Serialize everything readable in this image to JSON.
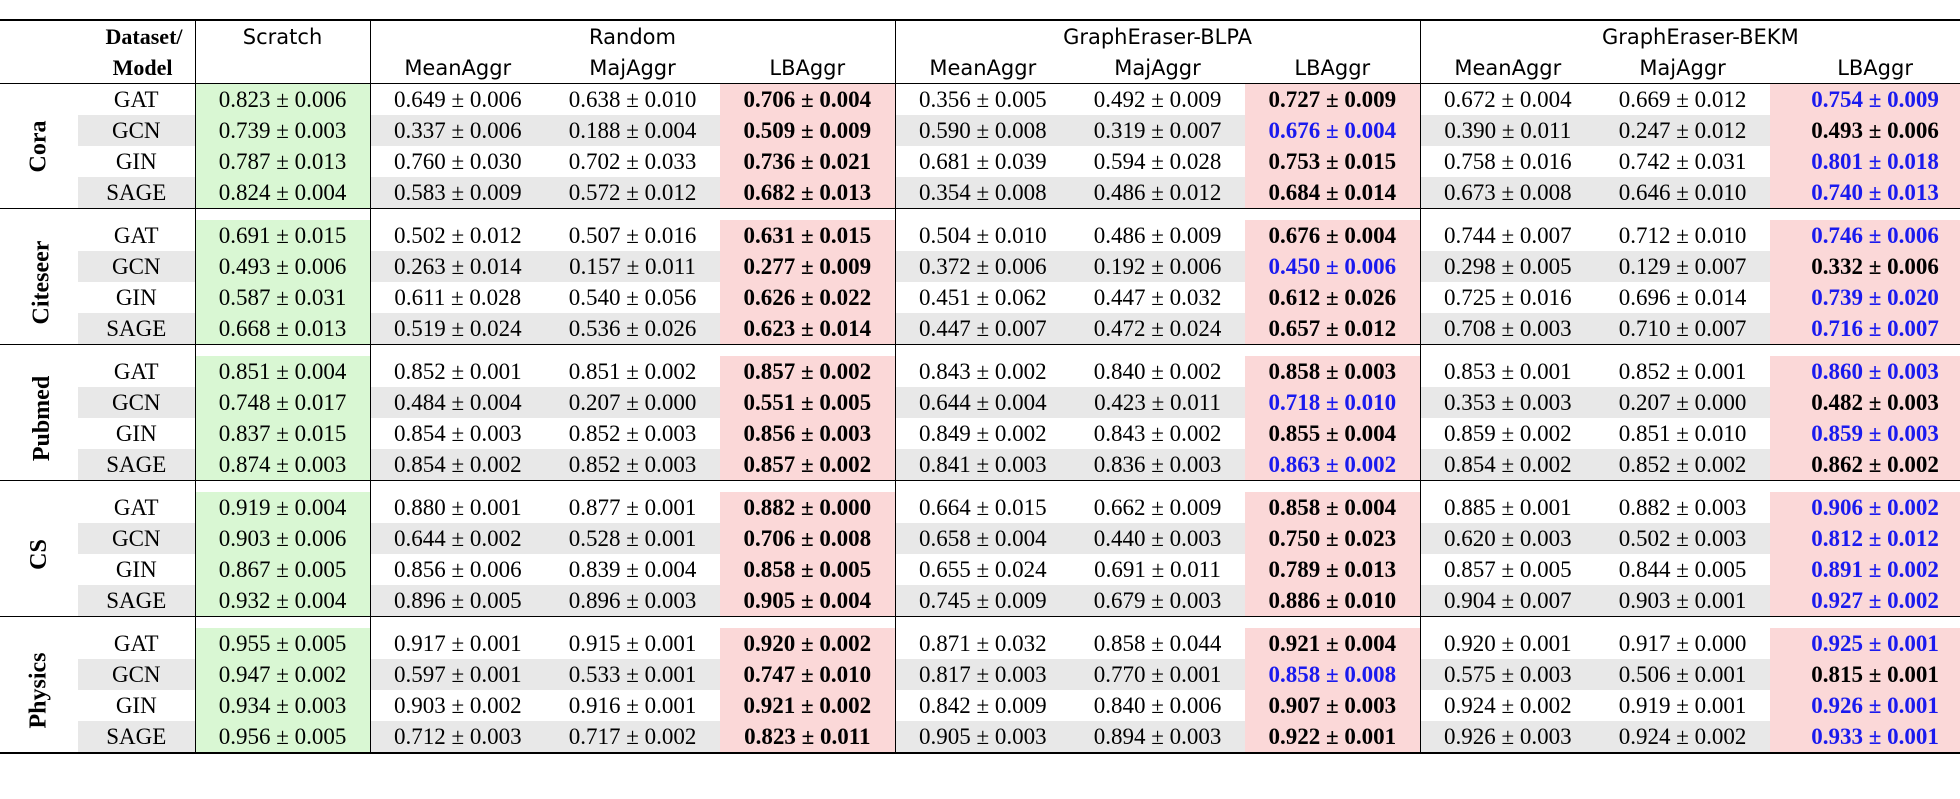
{
  "header": {
    "dataset_model_line1": "Dataset/",
    "dataset_model_line2": "Model",
    "scratch": "Scratch",
    "groups": [
      "Random",
      "GraphEraser-BLPA",
      "GraphEraser-BEKM"
    ],
    "subcols": [
      "MeanAggr",
      "MajAggr",
      "LBAggr"
    ]
  },
  "colors": {
    "scratch_bg": "#d9f7d3",
    "lbaggr_bg": "#fbd8d8",
    "alt_row_bg": "#e8e8e8",
    "best_blue": "#1a1aee"
  },
  "datasets": [
    {
      "name": "Cora",
      "rows": [
        {
          "model": "GAT",
          "cells": [
            "0.823 ± 0.006",
            "0.649 ± 0.006",
            "0.638 ± 0.010",
            "0.706 ± 0.004",
            "0.356 ± 0.005",
            "0.492 ± 0.009",
            "0.727 ± 0.009",
            "0.672 ± 0.004",
            "0.669 ± 0.012",
            "0.754 ± 0.009"
          ],
          "blue": [
            9
          ]
        },
        {
          "model": "GCN",
          "cells": [
            "0.739 ± 0.003",
            "0.337 ± 0.006",
            "0.188 ± 0.004",
            "0.509 ± 0.009",
            "0.590 ± 0.008",
            "0.319 ± 0.007",
            "0.676 ± 0.004",
            "0.390 ± 0.011",
            "0.247 ± 0.012",
            "0.493 ± 0.006"
          ],
          "blue": [
            6
          ]
        },
        {
          "model": "GIN",
          "cells": [
            "0.787 ± 0.013",
            "0.760 ± 0.030",
            "0.702 ± 0.033",
            "0.736 ± 0.021",
            "0.681 ± 0.039",
            "0.594 ± 0.028",
            "0.753 ± 0.015",
            "0.758 ± 0.016",
            "0.742 ± 0.031",
            "0.801 ± 0.018"
          ],
          "blue": [
            9
          ]
        },
        {
          "model": "SAGE",
          "cells": [
            "0.824 ± 0.004",
            "0.583 ± 0.009",
            "0.572 ± 0.012",
            "0.682 ± 0.013",
            "0.354 ± 0.008",
            "0.486 ± 0.012",
            "0.684 ± 0.014",
            "0.673 ± 0.008",
            "0.646 ± 0.010",
            "0.740 ± 0.013"
          ],
          "blue": [
            9
          ]
        }
      ]
    },
    {
      "name": "Citeseer",
      "rows": [
        {
          "model": "GAT",
          "cells": [
            "0.691 ± 0.015",
            "0.502 ± 0.012",
            "0.507 ± 0.016",
            "0.631 ± 0.015",
            "0.504 ± 0.010",
            "0.486 ± 0.009",
            "0.676 ± 0.004",
            "0.744 ± 0.007",
            "0.712 ± 0.010",
            "0.746 ± 0.006"
          ],
          "blue": [
            9
          ]
        },
        {
          "model": "GCN",
          "cells": [
            "0.493 ± 0.006",
            "0.263 ± 0.014",
            "0.157 ± 0.011",
            "0.277 ± 0.009",
            "0.372 ± 0.006",
            "0.192 ± 0.006",
            "0.450 ± 0.006",
            "0.298 ± 0.005",
            "0.129 ± 0.007",
            "0.332 ± 0.006"
          ],
          "blue": [
            6
          ]
        },
        {
          "model": "GIN",
          "cells": [
            "0.587 ± 0.031",
            "0.611 ± 0.028",
            "0.540 ± 0.056",
            "0.626 ± 0.022",
            "0.451 ± 0.062",
            "0.447 ± 0.032",
            "0.612 ± 0.026",
            "0.725 ± 0.016",
            "0.696 ± 0.014",
            "0.739 ± 0.020"
          ],
          "blue": [
            9
          ]
        },
        {
          "model": "SAGE",
          "cells": [
            "0.668 ± 0.013",
            "0.519 ± 0.024",
            "0.536 ± 0.026",
            "0.623 ± 0.014",
            "0.447 ± 0.007",
            "0.472 ± 0.024",
            "0.657 ± 0.012",
            "0.708 ± 0.003",
            "0.710 ± 0.007",
            "0.716 ± 0.007"
          ],
          "blue": [
            9
          ]
        }
      ]
    },
    {
      "name": "Pubmed",
      "rows": [
        {
          "model": "GAT",
          "cells": [
            "0.851 ± 0.004",
            "0.852 ± 0.001",
            "0.851 ± 0.002",
            "0.857 ± 0.002",
            "0.843 ± 0.002",
            "0.840 ± 0.002",
            "0.858 ± 0.003",
            "0.853 ± 0.001",
            "0.852 ± 0.001",
            "0.860 ± 0.003"
          ],
          "blue": [
            9
          ]
        },
        {
          "model": "GCN",
          "cells": [
            "0.748 ± 0.017",
            "0.484 ± 0.004",
            "0.207 ± 0.000",
            "0.551 ± 0.005",
            "0.644 ± 0.004",
            "0.423 ± 0.011",
            "0.718 ± 0.010",
            "0.353 ± 0.003",
            "0.207 ± 0.000",
            "0.482 ± 0.003"
          ],
          "blue": [
            6
          ]
        },
        {
          "model": "GIN",
          "cells": [
            "0.837 ± 0.015",
            "0.854 ± 0.003",
            "0.852 ± 0.003",
            "0.856 ± 0.003",
            "0.849 ± 0.002",
            "0.843 ± 0.002",
            "0.855 ± 0.004",
            "0.859 ± 0.002",
            "0.851 ± 0.010",
            "0.859 ± 0.003"
          ],
          "blue": [
            9
          ]
        },
        {
          "model": "SAGE",
          "cells": [
            "0.874 ± 0.003",
            "0.854 ± 0.002",
            "0.852 ± 0.003",
            "0.857 ± 0.002",
            "0.841 ± 0.003",
            "0.836 ± 0.003",
            "0.863 ± 0.002",
            "0.854 ± 0.002",
            "0.852 ± 0.002",
            "0.862 ± 0.002"
          ],
          "blue": [
            6
          ]
        }
      ]
    },
    {
      "name": "CS",
      "rows": [
        {
          "model": "GAT",
          "cells": [
            "0.919 ± 0.004",
            "0.880 ± 0.001",
            "0.877 ± 0.001",
            "0.882 ± 0.000",
            "0.664 ± 0.015",
            "0.662 ± 0.009",
            "0.858 ± 0.004",
            "0.885 ± 0.001",
            "0.882 ± 0.003",
            "0.906 ± 0.002"
          ],
          "blue": [
            9
          ]
        },
        {
          "model": "GCN",
          "cells": [
            "0.903 ± 0.006",
            "0.644 ± 0.002",
            "0.528 ± 0.001",
            "0.706 ± 0.008",
            "0.658 ± 0.004",
            "0.440 ± 0.003",
            "0.750 ± 0.023",
            "0.620 ± 0.003",
            "0.502 ± 0.003",
            "0.812 ± 0.012"
          ],
          "blue": [
            9
          ]
        },
        {
          "model": "GIN",
          "cells": [
            "0.867 ± 0.005",
            "0.856 ± 0.006",
            "0.839 ± 0.004",
            "0.858 ± 0.005",
            "0.655 ± 0.024",
            "0.691 ± 0.011",
            "0.789 ± 0.013",
            "0.857 ± 0.005",
            "0.844 ± 0.005",
            "0.891 ± 0.002"
          ],
          "blue": [
            9
          ]
        },
        {
          "model": "SAGE",
          "cells": [
            "0.932 ± 0.004",
            "0.896 ± 0.005",
            "0.896 ± 0.003",
            "0.905 ± 0.004",
            "0.745 ± 0.009",
            "0.679 ± 0.003",
            "0.886 ± 0.010",
            "0.904 ± 0.007",
            "0.903 ± 0.001",
            "0.927 ± 0.002"
          ],
          "blue": [
            9
          ]
        }
      ]
    },
    {
      "name": "Physics",
      "rows": [
        {
          "model": "GAT",
          "cells": [
            "0.955 ± 0.005",
            "0.917 ± 0.001",
            "0.915 ± 0.001",
            "0.920 ± 0.002",
            "0.871 ± 0.032",
            "0.858 ± 0.044",
            "0.921 ± 0.004",
            "0.920 ± 0.001",
            "0.917 ± 0.000",
            "0.925 ± 0.001"
          ],
          "blue": [
            9
          ]
        },
        {
          "model": "GCN",
          "cells": [
            "0.947 ± 0.002",
            "0.597 ± 0.001",
            "0.533 ± 0.001",
            "0.747 ± 0.010",
            "0.817 ± 0.003",
            "0.770 ± 0.001",
            "0.858 ± 0.008",
            "0.575 ± 0.003",
            "0.506 ± 0.001",
            "0.815 ± 0.001"
          ],
          "blue": [
            6
          ]
        },
        {
          "model": "GIN",
          "cells": [
            "0.934 ± 0.003",
            "0.903 ± 0.002",
            "0.916 ± 0.001",
            "0.921 ± 0.002",
            "0.842 ± 0.009",
            "0.840 ± 0.006",
            "0.907 ± 0.003",
            "0.924 ± 0.002",
            "0.919 ± 0.001",
            "0.926 ± 0.001"
          ],
          "blue": [
            9
          ]
        },
        {
          "model": "SAGE",
          "cells": [
            "0.956 ± 0.005",
            "0.712 ± 0.003",
            "0.717 ± 0.002",
            "0.823 ± 0.011",
            "0.905 ± 0.003",
            "0.894 ± 0.003",
            "0.922 ± 0.001",
            "0.926 ± 0.003",
            "0.924 ± 0.002",
            "0.933 ± 0.001"
          ],
          "blue": [
            9
          ]
        }
      ]
    }
  ]
}
